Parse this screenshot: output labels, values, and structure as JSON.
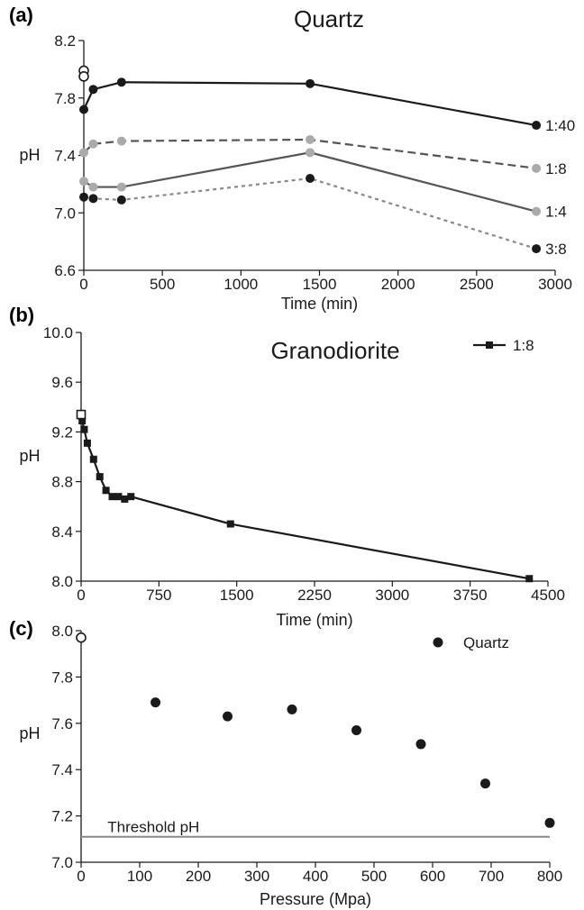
{
  "chart_data": [
    {
      "panel_label": "(a)",
      "type": "line",
      "title": "Quartz",
      "xlabel": "Time (min)",
      "ylabel": "pH",
      "xlim": [
        0,
        3000
      ],
      "ylim": [
        6.6,
        8.2
      ],
      "xticks": [
        0,
        500,
        1000,
        1500,
        2000,
        2500,
        3000
      ],
      "yticks": [
        6.6,
        7.0,
        7.4,
        7.8,
        8.2
      ],
      "initial_open_markers": [
        {
          "x": 0,
          "y": 7.99
        },
        {
          "x": 0,
          "y": 7.95
        }
      ],
      "series": [
        {
          "label": "1:40",
          "color": "#1a1a1a",
          "marker_color": "#1a1a1a",
          "style": "solid",
          "x": [
            0,
            60,
            240,
            1440,
            2880
          ],
          "y": [
            7.72,
            7.86,
            7.91,
            7.9,
            7.61
          ]
        },
        {
          "label": "1:8",
          "color": "#555555",
          "marker_color": "#aaaaaa",
          "style": "dashed",
          "x": [
            0,
            60,
            240,
            1440,
            2880
          ],
          "y": [
            7.42,
            7.48,
            7.5,
            7.51,
            7.31
          ]
        },
        {
          "label": "1:4",
          "color": "#555555",
          "marker_color": "#aaaaaa",
          "style": "solid",
          "x": [
            0,
            60,
            240,
            1440,
            2880
          ],
          "y": [
            7.22,
            7.18,
            7.18,
            7.42,
            7.01
          ]
        },
        {
          "label": "3:8",
          "color": "#888888",
          "marker_color": "#1a1a1a",
          "style": "dotted",
          "x": [
            0,
            60,
            240,
            1440,
            2880
          ],
          "y": [
            7.11,
            7.1,
            7.09,
            7.24,
            6.75
          ]
        }
      ]
    },
    {
      "panel_label": "(b)",
      "type": "line",
      "title": "Granodiorite",
      "xlabel": "Time (min)",
      "ylabel": "pH",
      "xlim": [
        0,
        4500
      ],
      "ylim": [
        8.0,
        10.0
      ],
      "xticks": [
        0,
        750,
        1500,
        2250,
        3000,
        3750,
        4500
      ],
      "yticks": [
        8.0,
        8.4,
        8.8,
        9.2,
        9.6,
        10.0
      ],
      "legend": {
        "label": "1:8",
        "position": "top-right"
      },
      "initial_open_markers": [
        {
          "x": 0,
          "y": 9.34
        }
      ],
      "series": [
        {
          "label": "1:8",
          "color": "#1a1a1a",
          "marker": "square",
          "x": [
            10,
            30,
            60,
            120,
            180,
            240,
            300,
            360,
            420,
            480,
            1440,
            4320
          ],
          "y": [
            9.29,
            9.22,
            9.11,
            8.98,
            8.84,
            8.73,
            8.68,
            8.68,
            8.66,
            8.68,
            8.46,
            8.02
          ]
        }
      ]
    },
    {
      "panel_label": "(c)",
      "type": "scatter",
      "xlabel": "Pressure (Mpa)",
      "ylabel": "pH",
      "xlim": [
        0,
        800
      ],
      "ylim": [
        7.0,
        8.0
      ],
      "xticks": [
        0,
        100,
        200,
        300,
        400,
        500,
        600,
        700,
        800
      ],
      "yticks": [
        7.0,
        7.2,
        7.4,
        7.6,
        7.8,
        8.0
      ],
      "legend": {
        "label": "Quartz",
        "position": "top-right"
      },
      "initial_open_markers": [
        {
          "x": 0,
          "y": 7.97
        }
      ],
      "threshold": {
        "label": "Threshold pH",
        "value": 7.11,
        "color": "#888888"
      },
      "series": [
        {
          "label": "Quartz",
          "color": "#1a1a1a",
          "x": [
            127,
            250,
            360,
            470,
            580,
            690,
            800
          ],
          "y": [
            7.69,
            7.63,
            7.66,
            7.57,
            7.51,
            7.34,
            7.17
          ]
        }
      ]
    }
  ]
}
